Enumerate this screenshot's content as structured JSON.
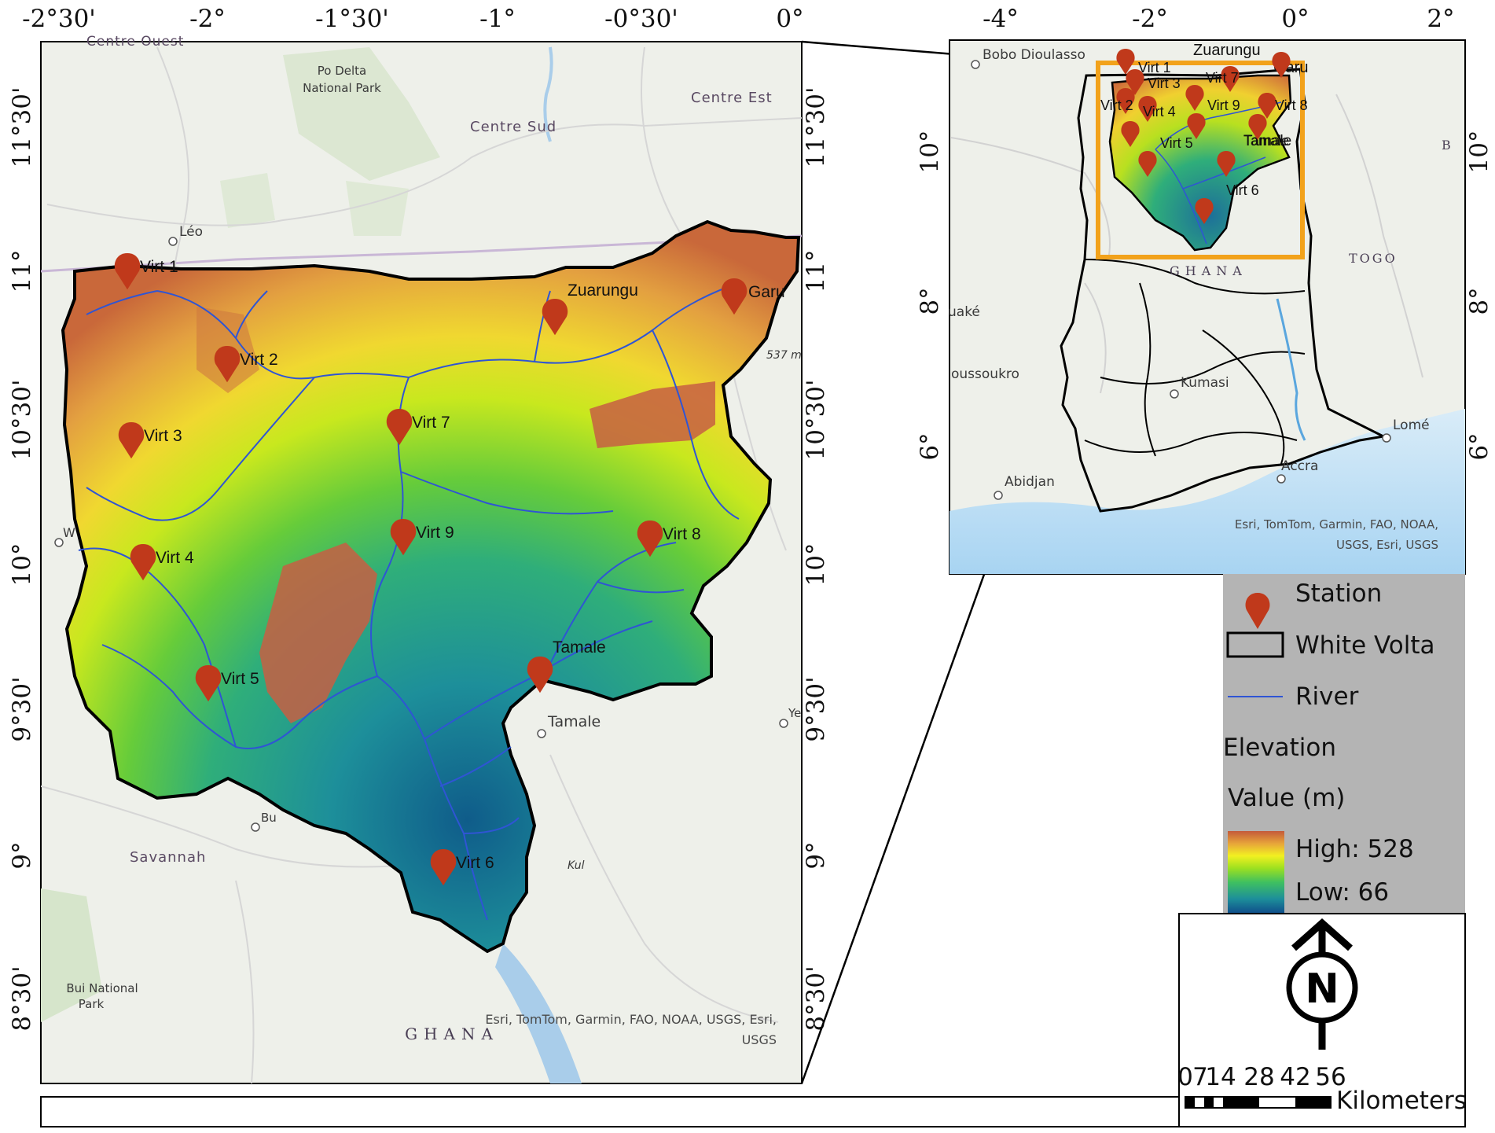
{
  "main_map": {
    "top_ticks": [
      "-2°30'",
      "-2°",
      "-1°30'",
      "-1°",
      "-0°30'",
      "0°"
    ],
    "left_ticks": [
      "11°30'",
      "10°",
      "11°",
      "10°30'",
      "10°",
      "9°30'",
      "9°",
      "8°30'"
    ],
    "left_ticks_ordered": [
      "11°30'",
      "11°",
      "10°30'",
      "10°",
      "9°30'",
      "9°",
      "8°30'"
    ],
    "right_ticks": [
      "11°30'",
      "11°",
      "10°30'",
      "10°",
      "9°30'",
      "9°",
      "8°30'"
    ],
    "region_labels": [
      "Centre Ouest",
      "Centre Sud",
      "Centre Est",
      "Savannah",
      "GHANA"
    ],
    "place_labels": [
      "Po Delta",
      "National Park",
      "Léo",
      "Tamale",
      "Bui National",
      "Park",
      "Kul",
      "537 m",
      "W",
      "Bu",
      "Ye"
    ],
    "stations": [
      "Virt 1",
      "Virt 2",
      "Virt 3",
      "Virt 4",
      "Virt 5",
      "Virt 6",
      "Virt 7",
      "Virt 8",
      "Virt 9",
      "Zuarungu",
      "Garu",
      "Tamale"
    ],
    "credit_line1": "Esri, TomTom, Garmin, FAO, NOAA, USGS, Esri,",
    "credit_line2": "USGS"
  },
  "inset_map": {
    "top_ticks": [
      "-4°",
      "-2°",
      "0°",
      "2°"
    ],
    "left_ticks": [
      "10°",
      "8°",
      "6°"
    ],
    "right_ticks": [
      "10°",
      "8°",
      "6°"
    ],
    "place_labels": [
      "Bobo Dioulasso",
      "Zuarungu",
      "Garu",
      "Tamale",
      "Kumasi",
      "Accra",
      "Lomé",
      "Abidjan",
      "uaké",
      "oussoukro",
      "B"
    ],
    "country_labels": [
      "GHANA",
      "TOGO"
    ],
    "stations": [
      "Virt 1",
      "Virt 3",
      "Virt 7",
      "Virt 2",
      "Virt 4",
      "Virt 9",
      "Virt 8",
      "Virt 5",
      "Virt 6",
      "Tamale"
    ],
    "credit_line1": "Esri, TomTom, Garmin, FAO, NOAA,",
    "credit_line2": "USGS, Esri, USGS"
  },
  "legend": {
    "station": "Station",
    "white_volta": "White Volta",
    "river": "River",
    "elevation": "Elevation",
    "value": "Value (m)",
    "high": "High: 528",
    "low": "Low: 66"
  },
  "scale_bar": {
    "labels": [
      "0",
      "7",
      "14",
      "28",
      "42",
      "56"
    ],
    "unit": "Kilometers"
  },
  "north_arrow": {
    "letter": "N"
  },
  "colors": {
    "station_marker": "#c0391b",
    "river": "#2f55d4",
    "boundary": "#000000",
    "legend_bg": "#b4b4b4",
    "inset_frame": "#f2a21b",
    "elevation_ramp": [
      "#0f4c8a",
      "#1d8f9a",
      "#3fc060",
      "#9de020",
      "#f2f021",
      "#e7a43a",
      "#c45a3a"
    ]
  }
}
